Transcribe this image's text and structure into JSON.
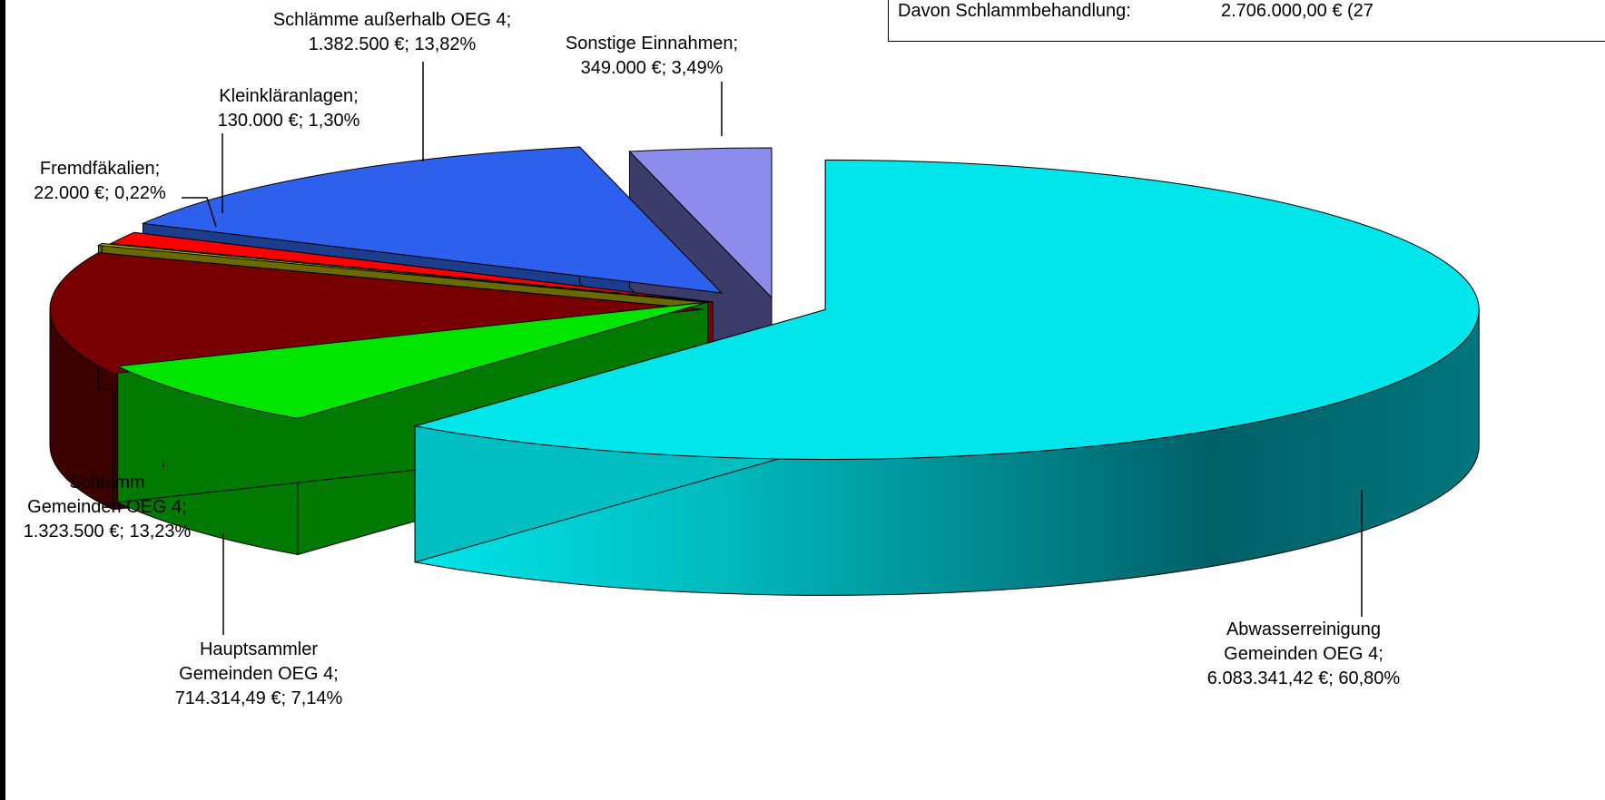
{
  "info_box": {
    "label": "Davon Schlammbehandlung:",
    "value": "2.706.000,00 € (27"
  },
  "colors": {
    "abwasser": "#00E6EA",
    "hauptsammler": "#00E600",
    "schlamm_gemeinden": "#780000",
    "fremdfaekalien": "#B4B400",
    "kleinklaeranlagen": "#FF0000",
    "schlaemme_ausserhalb": "#2E60EE",
    "sonstige": "#8C8CEC"
  },
  "chart_data": {
    "type": "pie",
    "title": "",
    "slices": [
      {
        "name": "Abwasserreinigung Gemeinden OEG 4",
        "value": 6083341.42,
        "percent": 60.8,
        "label_lines": [
          "Abwasserreinigung",
          "Gemeinden OEG 4;",
          "6.083.341,42 €; 60,80%"
        ]
      },
      {
        "name": "Hauptsammler Gemeinden OEG 4",
        "value": 714314.49,
        "percent": 7.14,
        "label_lines": [
          "Hauptsammler",
          "Gemeinden OEG 4;",
          "714.314,49 €; 7,14%"
        ]
      },
      {
        "name": "Schlamm Gemeinden OEG 4",
        "value": 1323500,
        "percent": 13.23,
        "label_lines": [
          "Schlamm",
          "Gemeinden OEG 4;",
          "1.323.500 €; 13,23%"
        ]
      },
      {
        "name": "Fremdfäkalien",
        "value": 22000,
        "percent": 0.22,
        "label_lines": [
          "Fremdfäkalien;",
          "22.000 €; 0,22%"
        ]
      },
      {
        "name": "Kleinkläranlagen",
        "value": 130000,
        "percent": 1.3,
        "label_lines": [
          "Kleinkläranlagen;",
          "130.000 €; 1,30%"
        ]
      },
      {
        "name": "Schlämme außerhalb OEG 4",
        "value": 1382500,
        "percent": 13.82,
        "label_lines": [
          "Schlämme außerhalb OEG 4;",
          "1.382.500 €; 13,82%"
        ]
      },
      {
        "name": "Sonstige Einnahmen",
        "value": 349000,
        "percent": 3.49,
        "label_lines": [
          "Sonstige Einnahmen;",
          "349.000 €; 3,49%"
        ]
      }
    ]
  }
}
